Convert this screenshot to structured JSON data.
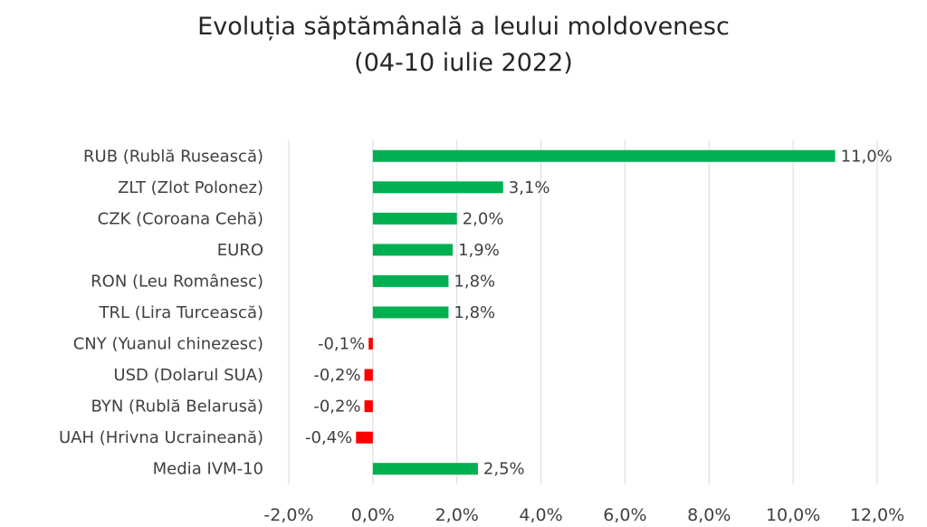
{
  "chart_data": {
    "type": "bar",
    "orientation": "horizontal",
    "title": "Evoluția săptămânală a leului moldovenesc",
    "subtitle": "(04-10 iulie 2022)",
    "categories": [
      "RUB (Rublă Rusească)",
      "ZLT (Zlot Polonez)",
      "CZK (Coroana Cehă)",
      "EURO",
      "RON (Leu Românesc)",
      "TRL (Lira Turcească)",
      "CNY (Yuanul chinezesc)",
      "USD (Dolarul SUA)",
      "BYN (Rublă Belarusă)",
      "UAH (Hrivna Ucraineană)",
      "Media IVM-10"
    ],
    "values": [
      11.0,
      3.1,
      2.0,
      1.9,
      1.8,
      1.8,
      -0.1,
      -0.2,
      -0.2,
      -0.4,
      2.5
    ],
    "value_labels": [
      "11,0%",
      "3,1%",
      "2,0%",
      "1,9%",
      "1,8%",
      "1,8%",
      "-0,1%",
      "-0,2%",
      "-0,2%",
      "-0,4%",
      "2,5%"
    ],
    "xlim": [
      -2,
      12
    ],
    "xticks": [
      -2,
      0,
      2,
      4,
      6,
      8,
      10,
      12
    ],
    "xtick_labels": [
      "-2,0%",
      "0,0%",
      "2,0%",
      "4,0%",
      "6,0%",
      "8,0%",
      "10,0%",
      "12,0%"
    ],
    "grid": true,
    "colors": {
      "positive": "#00b050",
      "negative": "#ff0000"
    }
  }
}
